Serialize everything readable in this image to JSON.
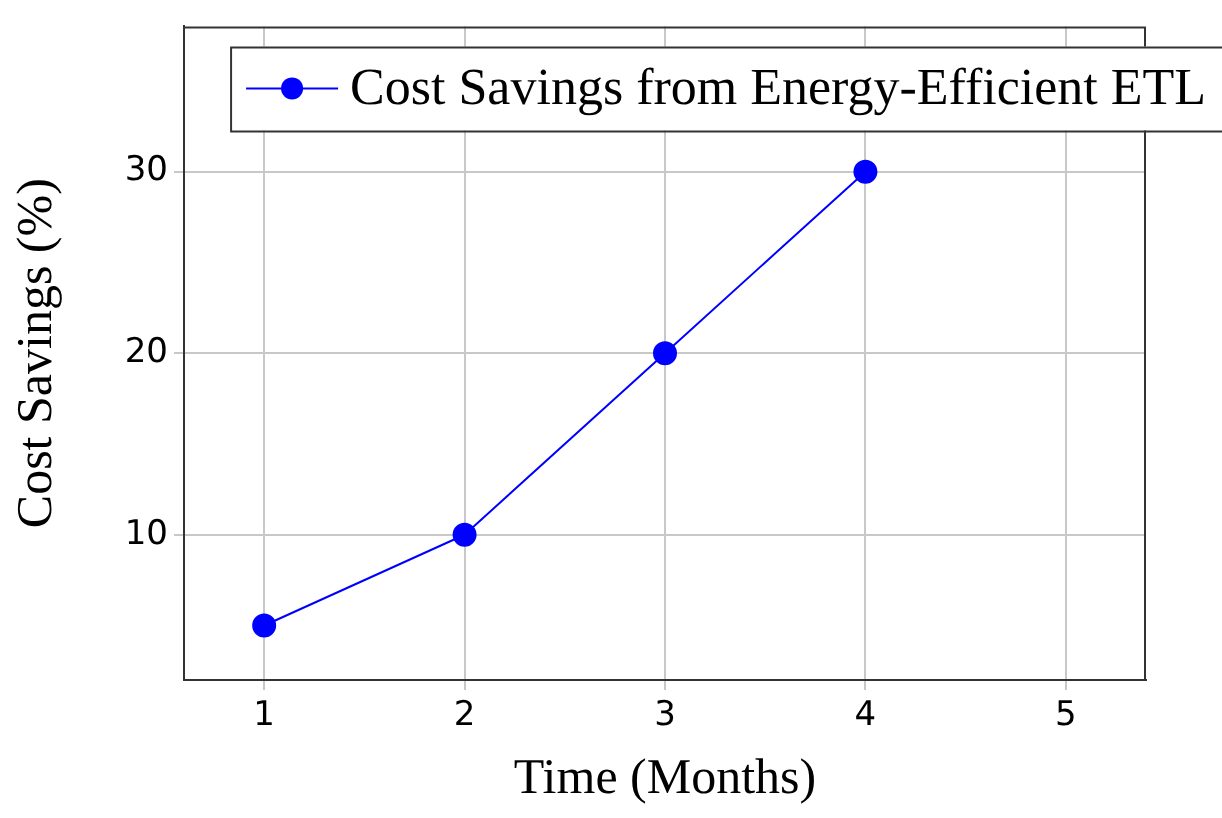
{
  "chart_data": {
    "type": "line",
    "xlabel": "Time (Months)",
    "ylabel": "Cost Savings (%)",
    "x": [
      1,
      2,
      3,
      4
    ],
    "series": [
      {
        "name": "Cost Savings from Energy-Efficient ETL",
        "color": "#0000ff",
        "values": [
          5,
          10,
          20,
          30
        ]
      }
    ],
    "xlim": [
      0.6,
      5.4
    ],
    "xticks": [
      1,
      2,
      3,
      4,
      5
    ],
    "ylim": [
      2,
      38
    ],
    "yticks": [
      10,
      20,
      30
    ],
    "grid": true,
    "legend": "top right",
    "marker": "circle",
    "line_style": "solid"
  }
}
